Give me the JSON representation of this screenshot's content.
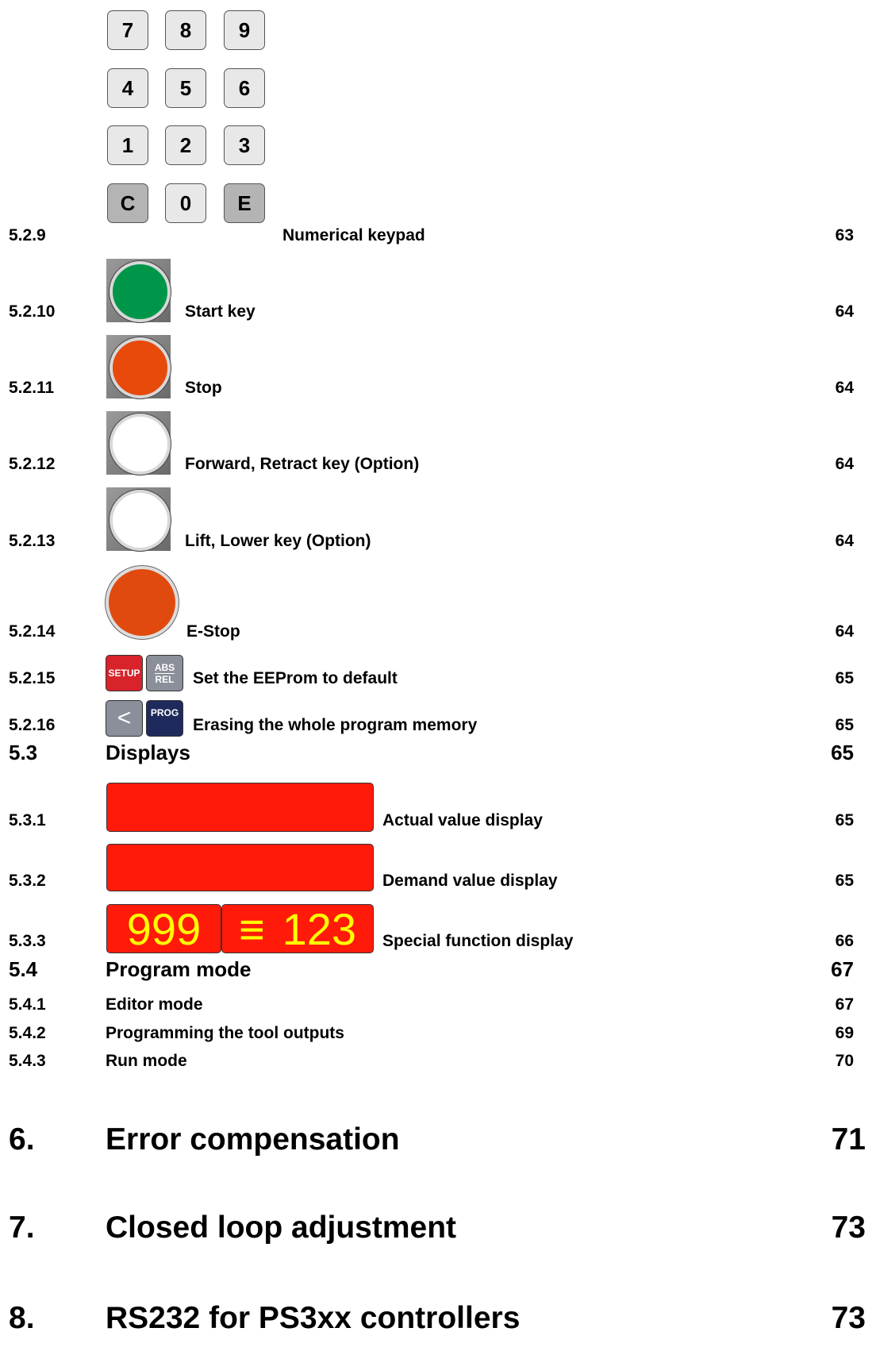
{
  "keypad": {
    "rows": [
      [
        "7",
        "8",
        "9"
      ],
      [
        "4",
        "5",
        "6"
      ],
      [
        "1",
        "2",
        "3"
      ],
      [
        "C",
        "0",
        "E"
      ]
    ]
  },
  "icons": {
    "setup": "SETUP",
    "abs": "ABS",
    "rel": "REL",
    "back": "<",
    "prog": "PROG",
    "display_left": "999",
    "display_mid": "≡",
    "display_right": "123"
  },
  "entries": [
    {
      "number": "5.2.9",
      "title": "Numerical keypad",
      "page": "63"
    },
    {
      "number": "5.2.10",
      "title": "Start key",
      "page": "64"
    },
    {
      "number": "5.2.11",
      "title": "Stop",
      "page": "64"
    },
    {
      "number": "5.2.12",
      "title": "Forward, Retract key (Option)",
      "page": "64"
    },
    {
      "number": "5.2.13",
      "title": "Lift, Lower key (Option)",
      "page": "64"
    },
    {
      "number": "5.2.14",
      "title": "E-Stop",
      "page": "64"
    },
    {
      "number": "5.2.15",
      "title": "Set the EEProm to default",
      "page": "65"
    },
    {
      "number": "5.2.16",
      "title": "Erasing the whole program memory",
      "page": "65"
    },
    {
      "number": "5.3",
      "title": "Displays",
      "page": "65"
    },
    {
      "number": "5.3.1",
      "title": "Actual value display",
      "page": "65"
    },
    {
      "number": "5.3.2",
      "title": "Demand value display",
      "page": "65"
    },
    {
      "number": "5.3.3",
      "title": "Special function display",
      "page": "66"
    },
    {
      "number": "5.4",
      "title": "Program mode",
      "page": "67"
    },
    {
      "number": "5.4.1",
      "title": "Editor mode",
      "page": "67"
    },
    {
      "number": "5.4.2",
      "title": "Programming the tool outputs",
      "page": "69"
    },
    {
      "number": "5.4.3",
      "title": "Run mode",
      "page": "70"
    },
    {
      "number": "6.",
      "title": "Error compensation",
      "page": "71"
    },
    {
      "number": "7.",
      "title": "Closed loop adjustment",
      "page": "73"
    },
    {
      "number": "8.",
      "title": "RS232 for PS3xx controllers",
      "page": "73"
    }
  ]
}
